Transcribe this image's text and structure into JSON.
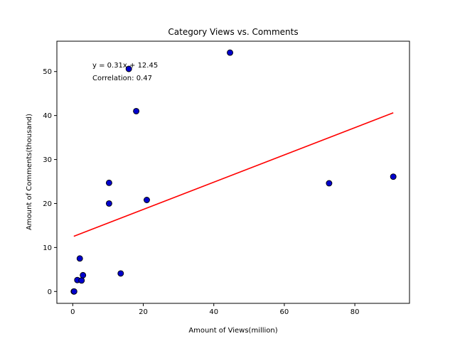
{
  "chart_data": {
    "type": "scatter",
    "title": "Category Views vs. Comments",
    "xlabel": "Amount of Views(million)",
    "ylabel": "Amount of Comments(thousand)",
    "xlim": [
      -4.5,
      95.5
    ],
    "ylim": [
      -2.7,
      56.9
    ],
    "xticks": [
      0,
      20,
      40,
      60,
      80
    ],
    "yticks": [
      0,
      10,
      20,
      30,
      40,
      50
    ],
    "points": [
      {
        "x": 0.3,
        "y": 0.0
      },
      {
        "x": 0.4,
        "y": 0.0
      },
      {
        "x": 1.3,
        "y": 2.6
      },
      {
        "x": 2.5,
        "y": 2.5
      },
      {
        "x": 2.0,
        "y": 7.5
      },
      {
        "x": 2.9,
        "y": 3.7
      },
      {
        "x": 13.6,
        "y": 4.1
      },
      {
        "x": 10.3,
        "y": 20.0
      },
      {
        "x": 10.3,
        "y": 24.7
      },
      {
        "x": 21.0,
        "y": 20.8
      },
      {
        "x": 15.9,
        "y": 50.6
      },
      {
        "x": 18.0,
        "y": 41.0
      },
      {
        "x": 44.6,
        "y": 54.3
      },
      {
        "x": 72.7,
        "y": 24.6
      },
      {
        "x": 90.9,
        "y": 26.1
      }
    ],
    "fit_line": {
      "slope": 0.31,
      "intercept": 12.45,
      "x_range": [
        0.3,
        90.9
      ],
      "color": "#ff0000"
    },
    "marker_color": "#0000cc",
    "grid": false,
    "annotation": {
      "equation": "y = 0.31x + 12.45",
      "correlation": "Correlation: 0.47"
    }
  }
}
